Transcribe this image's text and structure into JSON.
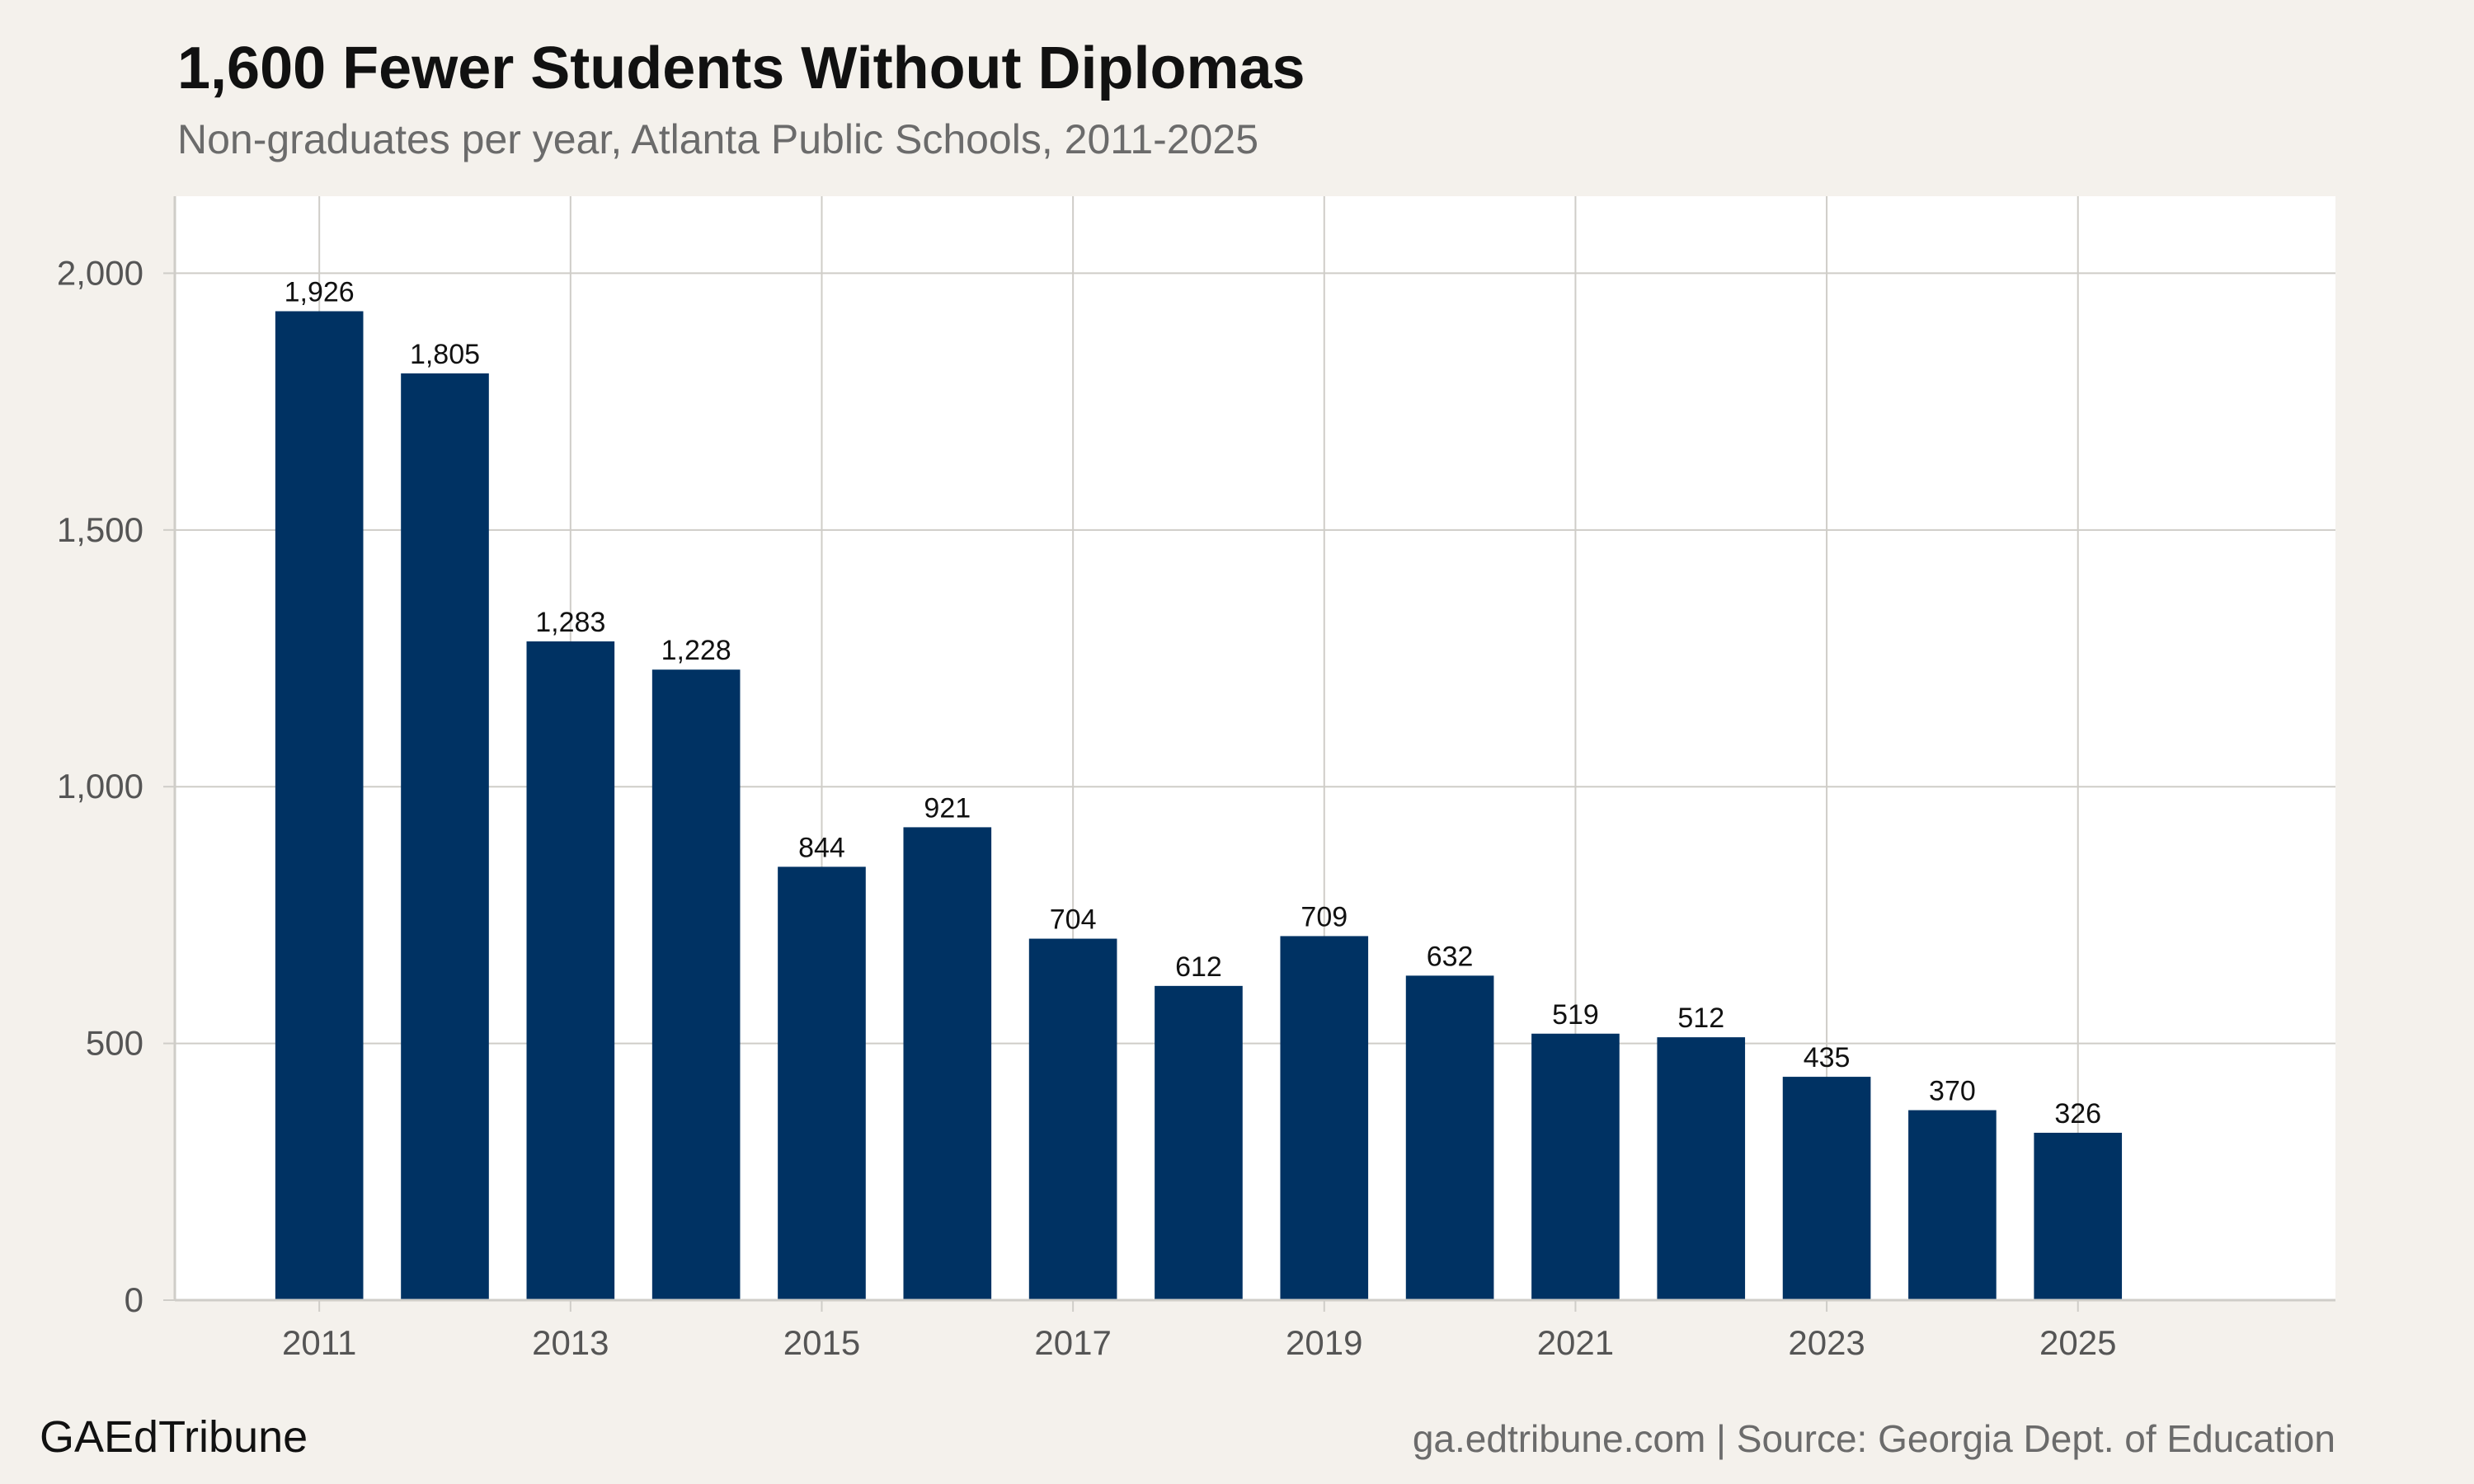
{
  "header": {
    "title": "1,600 Fewer Students Without Diplomas",
    "subtitle": "Non-graduates per year, Atlanta Public Schools, 2011-2025"
  },
  "footer": {
    "brand": "GAEdTribune",
    "source": "ga.edtribune.com | Source: Georgia Dept. of Education"
  },
  "colors": {
    "bar": "#003263",
    "grid": "#cfcdc8",
    "panel": "#ffffff",
    "background": "#f4f1ec"
  },
  "chart_data": {
    "type": "bar",
    "title": "1,600 Fewer Students Without Diplomas",
    "subtitle": "Non-graduates per year, Atlanta Public Schools, 2011-2025",
    "xlabel": "",
    "ylabel": "",
    "categories": [
      2011,
      2012,
      2013,
      2014,
      2015,
      2016,
      2017,
      2018,
      2019,
      2020,
      2021,
      2022,
      2023,
      2024,
      2025
    ],
    "values": [
      1926,
      1805,
      1283,
      1228,
      844,
      921,
      704,
      612,
      709,
      632,
      519,
      512,
      435,
      370,
      326
    ],
    "data_labels": [
      "1,926",
      "1,805",
      "1,283",
      "1,228",
      "844",
      "921",
      "704",
      "612",
      "709",
      "632",
      "519",
      "512",
      "435",
      "370",
      "326"
    ],
    "ylim": [
      0,
      2150
    ],
    "xlim": [
      2009.85,
      2027.05
    ],
    "yticks": [
      0,
      500,
      1000,
      1500,
      2000
    ],
    "ytick_labels": [
      "0",
      "500",
      "1,000",
      "1,500",
      "2,000"
    ],
    "xticks": [
      2011,
      2013,
      2015,
      2017,
      2019,
      2021,
      2023,
      2025
    ],
    "xtick_labels": [
      "2011",
      "2013",
      "2015",
      "2017",
      "2019",
      "2021",
      "2023",
      "2025"
    ],
    "bar_width": 0.7,
    "grid": true,
    "legend": "none"
  }
}
